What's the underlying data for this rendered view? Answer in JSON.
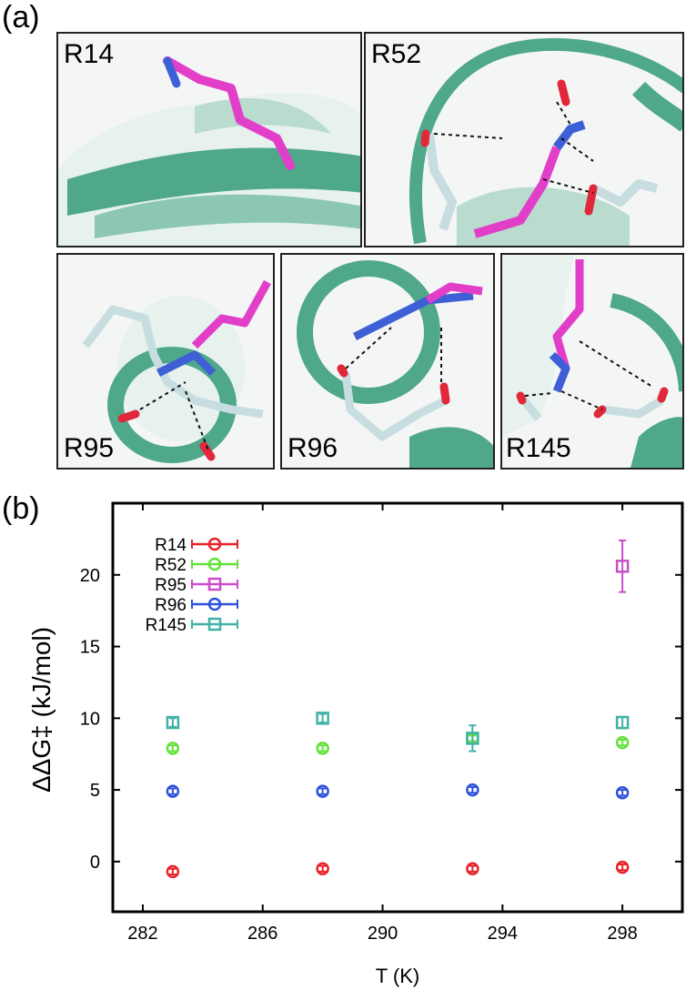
{
  "figure": {
    "label_a": "(a)",
    "label_b": "(b)"
  },
  "structures": [
    {
      "label": "R14",
      "icon": "protein-structure-r14"
    },
    {
      "label": "R52",
      "icon": "protein-structure-r52"
    },
    {
      "label": "R95",
      "icon": "protein-structure-r95"
    },
    {
      "label": "R96",
      "icon": "protein-structure-r96"
    },
    {
      "label": "R145",
      "icon": "protein-structure-r145"
    }
  ],
  "colors": {
    "ribbon": "#4fa88a",
    "ribbon_light": "#b9dccf",
    "arginine": "#e23fc8",
    "nitrogen": "#3e5fd6",
    "oxygen": "#e0283a",
    "carbon": "#c7dde0",
    "hbond": "#111111"
  },
  "chart_data": {
    "type": "scatter",
    "xlabel": "T (K)",
    "ylabel": "ΔΔG‡ (kJ/mol)",
    "xlim": [
      281,
      300
    ],
    "ylim": [
      -3.5,
      25
    ],
    "xticks": [
      282,
      286,
      290,
      294,
      298
    ],
    "yticks": [
      0,
      5,
      10,
      15,
      20
    ],
    "grid": false,
    "legend_position": "top-left",
    "series": [
      {
        "name": "R14",
        "color": "#e8232a",
        "marker": "circle",
        "points": [
          {
            "x": 283,
            "y": -0.7,
            "err": 0.2
          },
          {
            "x": 288,
            "y": -0.5,
            "err": 0.2
          },
          {
            "x": 293,
            "y": -0.5,
            "err": 0.2
          },
          {
            "x": 298,
            "y": -0.4,
            "err": 0.2
          }
        ]
      },
      {
        "name": "R52",
        "color": "#63e23a",
        "marker": "circle",
        "points": [
          {
            "x": 283,
            "y": 7.9,
            "err": 0.2
          },
          {
            "x": 288,
            "y": 7.9,
            "err": 0.2
          },
          {
            "x": 293,
            "y": 8.6,
            "err": 0.2
          },
          {
            "x": 298,
            "y": 8.3,
            "err": 0.2
          }
        ]
      },
      {
        "name": "R95",
        "color": "#c94fc8",
        "marker": "square",
        "points": [
          {
            "x": 298,
            "y": 20.6,
            "err": 1.8
          }
        ]
      },
      {
        "name": "R96",
        "color": "#2f52db",
        "marker": "circle",
        "points": [
          {
            "x": 283,
            "y": 4.9,
            "err": 0.2
          },
          {
            "x": 288,
            "y": 4.9,
            "err": 0.2
          },
          {
            "x": 293,
            "y": 5.0,
            "err": 0.2
          },
          {
            "x": 298,
            "y": 4.8,
            "err": 0.2
          }
        ]
      },
      {
        "name": "R145",
        "color": "#42b1a6",
        "marker": "square",
        "points": [
          {
            "x": 283,
            "y": 9.7,
            "err": 0.3
          },
          {
            "x": 288,
            "y": 10.0,
            "err": 0.3
          },
          {
            "x": 293,
            "y": 8.6,
            "err": 0.9
          },
          {
            "x": 298,
            "y": 9.7,
            "err": 0.4
          }
        ]
      }
    ]
  }
}
